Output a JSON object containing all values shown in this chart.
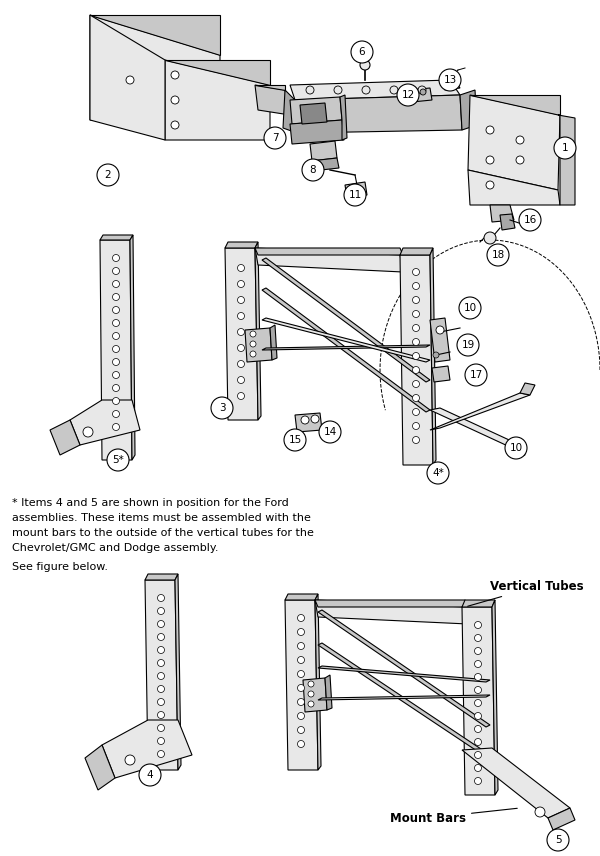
{
  "bg_color": "#ffffff",
  "lc": "#000000",
  "fc_light": "#e8e8e8",
  "fc_mid": "#c8c8c8",
  "fc_dark": "#a8a8a8",
  "note1": "* Items 4 and 5 are shown in position for the Ford",
  "note2": "assemblies. These items must be assembled with the",
  "note3": "mount bars to the outside of the vertical tubes for the",
  "note4": "Chevrolet/GMC and Dodge assembly.",
  "note5": "See figure below.",
  "lbl_vt": "Vertical Tubes",
  "lbl_mb": "Mount Bars"
}
